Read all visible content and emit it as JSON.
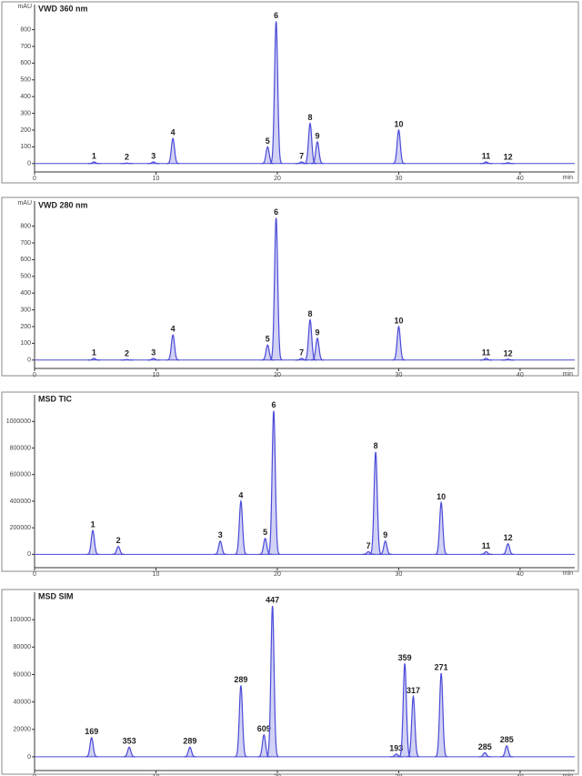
{
  "chart_data": [
    {
      "type": "line",
      "title": "VWD 360 nm",
      "y_label": "mAU",
      "x_label": "min",
      "color": "#4a4ad8",
      "x": [
        4.9,
        7.6,
        9.8,
        11.4,
        19.2,
        19.9,
        22.0,
        22.7,
        23.3,
        30.0,
        37.2,
        39.0
      ],
      "values": [
        10,
        3,
        10,
        150,
        100,
        850,
        10,
        240,
        130,
        200,
        10,
        5
      ],
      "peak_labels": [
        "1",
        "2",
        "3",
        "4",
        "5",
        "6",
        "7",
        "8",
        "9",
        "10",
        "11",
        "12"
      ],
      "xlim": [
        0,
        44.5
      ],
      "ylim": [
        -50,
        950
      ],
      "xticks": [
        0,
        10,
        20,
        30,
        40
      ],
      "yticks": [
        0,
        100,
        200,
        300,
        400,
        500,
        600,
        700,
        800
      ]
    },
    {
      "type": "line",
      "title": "VWD 280 nm",
      "y_label": "mAU",
      "x_label": "min",
      "color": "#4a4ad8",
      "x": [
        4.9,
        7.6,
        9.8,
        11.4,
        19.2,
        19.9,
        22.0,
        22.7,
        23.3,
        30.0,
        37.2,
        39.0
      ],
      "values": [
        10,
        3,
        10,
        150,
        90,
        850,
        10,
        240,
        130,
        200,
        10,
        5
      ],
      "peak_labels": [
        "1",
        "2",
        "3",
        "4",
        "5",
        "6",
        "7",
        "8",
        "9",
        "10",
        "11",
        "12"
      ],
      "xlim": [
        0,
        44.5
      ],
      "ylim": [
        -50,
        950
      ],
      "xticks": [
        0,
        10,
        20,
        30,
        40
      ],
      "yticks": [
        0,
        100,
        200,
        300,
        400,
        500,
        600,
        700,
        800
      ]
    },
    {
      "type": "line",
      "title": "MSD TIC",
      "x_label": "min",
      "color": "#4a4ad8",
      "x": [
        4.8,
        6.9,
        15.3,
        17.0,
        19.0,
        19.7,
        27.5,
        28.1,
        28.9,
        33.5,
        37.2,
        39.0
      ],
      "values": [
        180000,
        60000,
        100000,
        400000,
        120000,
        1080000,
        20000,
        770000,
        100000,
        390000,
        20000,
        80000
      ],
      "peak_labels": [
        "1",
        "2",
        "3",
        "4",
        "5",
        "6",
        "7",
        "8",
        "9",
        "10",
        "11",
        "12"
      ],
      "xlim": [
        0,
        44.5
      ],
      "ylim": [
        -100000,
        1200000
      ],
      "xticks": [
        0,
        10,
        20,
        30,
        40
      ],
      "yticks": [
        0,
        200000,
        400000,
        600000,
        800000,
        1000000
      ]
    },
    {
      "type": "line",
      "title": "MSD SIM",
      "x_label": "min",
      "color": "#4a4ad8",
      "x": [
        4.7,
        7.8,
        12.8,
        17.0,
        18.9,
        19.6,
        29.8,
        30.5,
        31.2,
        33.5,
        37.1,
        38.9
      ],
      "values": [
        14000,
        7000,
        7000,
        52000,
        16000,
        110000,
        2000,
        68000,
        44000,
        61000,
        3000,
        8000
      ],
      "peak_labels": [
        "169",
        "353",
        "289",
        "289",
        "609",
        "447",
        "193",
        "359",
        "317",
        "271",
        "285",
        "285"
      ],
      "xlim": [
        0,
        44.5
      ],
      "ylim": [
        -10000,
        120000
      ],
      "xticks": [
        0,
        10,
        20,
        30,
        40
      ],
      "yticks": [
        0,
        20000,
        40000,
        60000,
        80000,
        100000
      ]
    }
  ]
}
